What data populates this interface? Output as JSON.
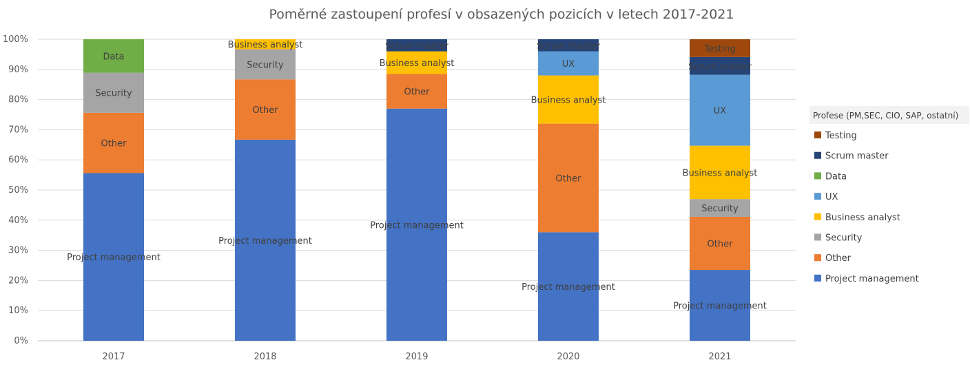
{
  "chart_data": {
    "type": "bar",
    "stacked": "percent",
    "title": "Poměrné zastoupení profesí v obsazených pozicích v letech 2017-2021",
    "xlabel": "",
    "ylabel": "",
    "ylim": [
      0,
      100
    ],
    "y_ticks": [
      "0%",
      "10%",
      "20%",
      "30%",
      "40%",
      "50%",
      "60%",
      "70%",
      "80%",
      "90%",
      "100%"
    ],
    "categories": [
      "2017",
      "2018",
      "2019",
      "2020",
      "2021"
    ],
    "legend_title": "Profese (PM,SEC, CIO, SAP, ostatní)",
    "legend_position": "right",
    "grid": true,
    "series": [
      {
        "name": "Project management",
        "color": "#4472C4",
        "values": [
          55.6,
          66.7,
          77.0,
          36.0,
          23.5
        ]
      },
      {
        "name": "Other",
        "color": "#ED7D31",
        "values": [
          20.0,
          20.0,
          11.5,
          36.0,
          17.6
        ]
      },
      {
        "name": "Security",
        "color": "#A5A5A5",
        "values": [
          13.3,
          10.0,
          0,
          0,
          5.9
        ]
      },
      {
        "name": "Business analyst",
        "color": "#FFC000",
        "values": [
          0,
          3.3,
          7.5,
          16.0,
          17.7
        ]
      },
      {
        "name": "UX",
        "color": "#5B9BD5",
        "values": [
          0,
          0,
          0,
          8.0,
          23.5
        ]
      },
      {
        "name": "Data",
        "color": "#70AD47",
        "values": [
          11.1,
          0,
          0,
          0,
          0
        ]
      },
      {
        "name": "Scrum master",
        "color": "#264478",
        "values": [
          0,
          0,
          4.0,
          4.0,
          5.9
        ]
      },
      {
        "name": "Testing",
        "color": "#9E480E",
        "values": [
          0,
          0,
          0,
          0,
          5.9
        ]
      }
    ]
  }
}
